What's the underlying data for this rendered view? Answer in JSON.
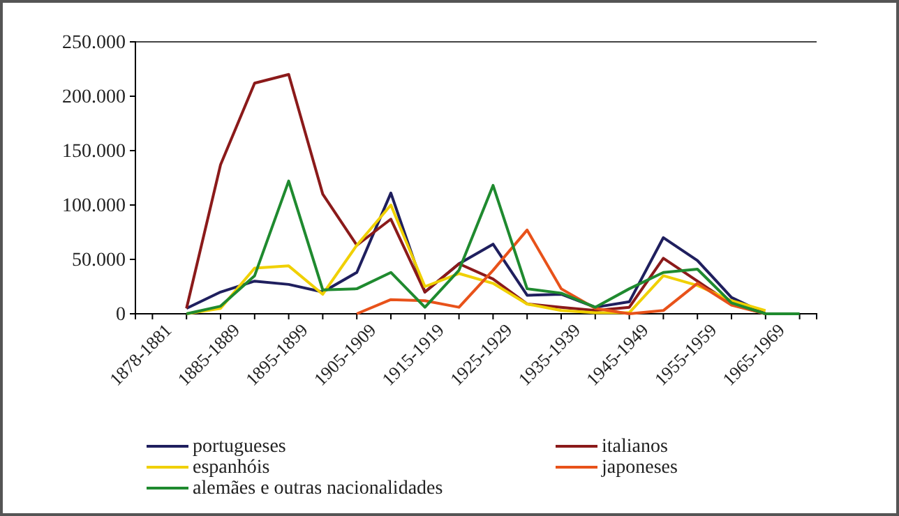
{
  "chart_data": {
    "type": "line",
    "categories": [
      "1878-1881",
      null,
      "1885-1889",
      null,
      "1895-1899",
      null,
      "1905-1909",
      null,
      "1915-1919",
      null,
      "1925-1929",
      null,
      "1935-1939",
      null,
      "1945-1949",
      null,
      "1955-1959",
      null,
      "1965-1969",
      null
    ],
    "series": [
      {
        "name": "portugueses",
        "color": "#1f1f5e",
        "values": [
          null,
          5000,
          20000,
          30000,
          27000,
          20000,
          38000,
          111000,
          20000,
          46000,
          64000,
          17000,
          18000,
          6000,
          11000,
          70000,
          49000,
          15000,
          0,
          null
        ]
      },
      {
        "name": "italianos",
        "color": "#8b1a1a",
        "values": [
          null,
          5000,
          137000,
          212000,
          220000,
          110000,
          63000,
          87000,
          20000,
          46000,
          32000,
          9000,
          6000,
          3000,
          6000,
          51000,
          30000,
          9000,
          0,
          null
        ]
      },
      {
        "name": "espanhóis",
        "color": "#f0d000",
        "values": [
          null,
          0,
          5000,
          42000,
          44000,
          18000,
          63000,
          100000,
          25000,
          37000,
          28000,
          9000,
          3000,
          1000,
          1000,
          35000,
          26000,
          12000,
          3000,
          null
        ]
      },
      {
        "name": "japoneses",
        "color": "#e8521a",
        "values": [
          null,
          null,
          null,
          null,
          null,
          null,
          0,
          13000,
          12000,
          6000,
          40000,
          77000,
          23000,
          5000,
          0,
          3000,
          28000,
          8000,
          0,
          null
        ]
      },
      {
        "name": "alemães e outras nacionalidades",
        "color": "#1f8a2f",
        "values": [
          null,
          0,
          7000,
          35000,
          122000,
          22000,
          23000,
          38000,
          6000,
          40000,
          118000,
          23000,
          19000,
          6000,
          23000,
          38000,
          41000,
          10000,
          0,
          0
        ]
      }
    ],
    "ylim": [
      0,
      250000
    ],
    "yticks": [
      {
        "value": 0,
        "label": "0"
      },
      {
        "value": 50000,
        "label": "50.000"
      },
      {
        "value": 100000,
        "label": "100.000"
      },
      {
        "value": 150000,
        "label": "150.000"
      },
      {
        "value": 200000,
        "label": "200.000"
      },
      {
        "value": 250000,
        "label": "250.000"
      }
    ],
    "legend": "bottom",
    "marker": "none",
    "line_style": "solid"
  }
}
